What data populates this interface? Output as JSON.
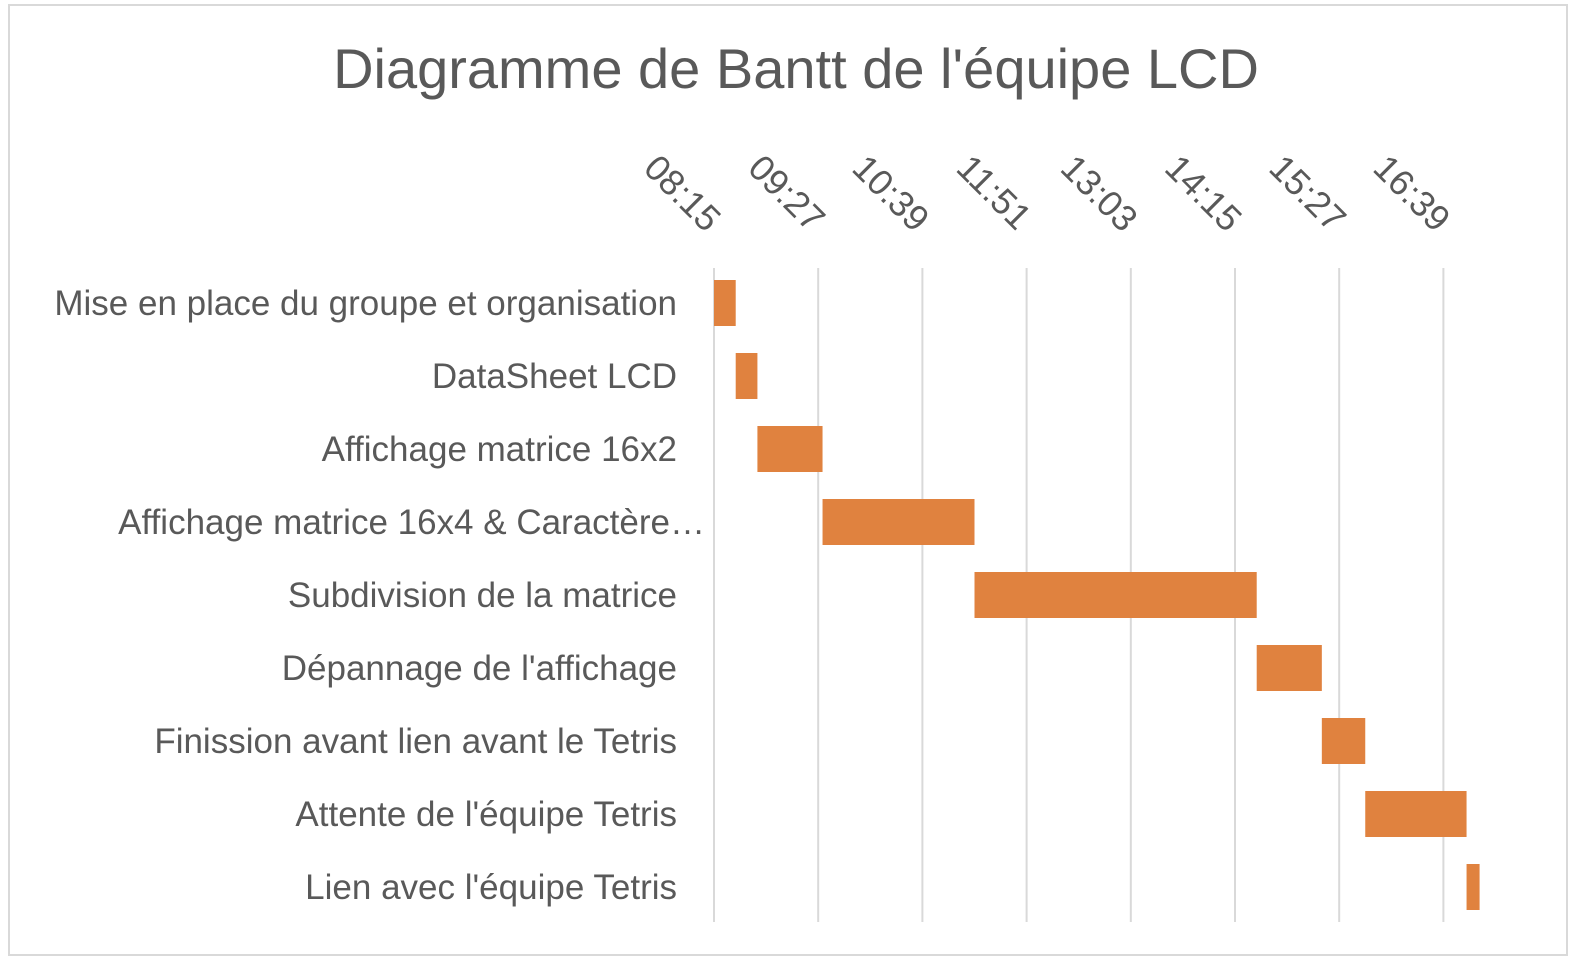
{
  "chart_data": {
    "type": "bar",
    "orientation": "horizontal-gantt",
    "title": "Diagramme de Bantt de l'équipe LCD",
    "x_axis": {
      "unit": "time",
      "position": "top",
      "ticks": [
        "08:15",
        "09:27",
        "10:39",
        "11:51",
        "13:03",
        "14:15",
        "15:27",
        "16:39"
      ],
      "range": [
        "08:15",
        "17:51"
      ],
      "gridlines": true
    },
    "legend": "none",
    "color": "#e0823f",
    "tasks": [
      {
        "label": "Mise en place du groupe et organisation",
        "start": "08:15",
        "end": "08:30"
      },
      {
        "label": "DataSheet LCD",
        "start": "08:30",
        "end": "08:45"
      },
      {
        "label": "Affichage matrice 16x2",
        "start": "08:45",
        "end": "09:30"
      },
      {
        "label": "Affichage matrice 16x4 & Caractère…",
        "start": "09:30",
        "end": "11:15"
      },
      {
        "label": "Subdivision de la matrice",
        "start": "11:15",
        "end": "14:30"
      },
      {
        "label": "Dépannage de l'affichage",
        "start": "14:30",
        "end": "15:15"
      },
      {
        "label": "Finission avant lien avant le Tetris",
        "start": "15:15",
        "end": "15:45"
      },
      {
        "label": "Attente de l'équipe Tetris",
        "start": "15:45",
        "end": "16:55"
      },
      {
        "label": "Lien avec l'équipe Tetris",
        "start": "16:55",
        "end": "17:04"
      }
    ]
  }
}
